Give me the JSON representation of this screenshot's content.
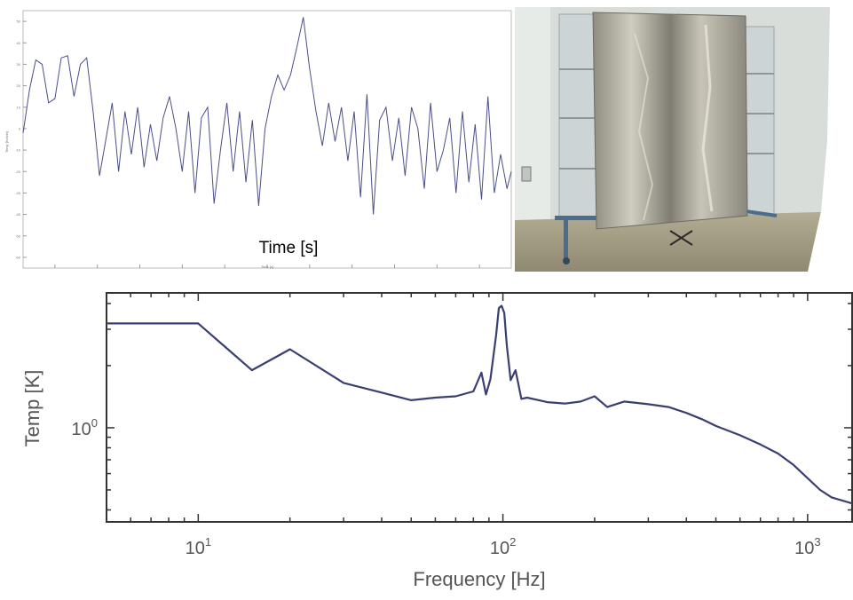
{
  "chart_data": [
    {
      "type": "line",
      "title": "",
      "xlabel": "Time [s]",
      "ylabel": "Temp [Kelvin]",
      "xlim": [
        3.985,
        4.215
      ],
      "ylim": [
        -65,
        55
      ],
      "x_ticks": [
        "4",
        "4.02",
        "4.04",
        "4.06",
        "4.08",
        "4.1",
        "4.12",
        "4.14",
        "4.16",
        "4.18",
        "4.2"
      ],
      "y_ticks": [
        "50",
        "40",
        "30",
        "20",
        "10",
        "0",
        "-10",
        "-20",
        "-30",
        "-40",
        "-50",
        "-60"
      ],
      "overlay_label": "Time [s]",
      "axis_label_small": "Time [s]",
      "series": [
        {
          "color": "#4a4f88",
          "x": [
            3.985,
            3.988,
            3.991,
            3.994,
            3.997,
            4.0,
            4.003,
            4.006,
            4.009,
            4.012,
            4.015,
            4.018,
            4.021,
            4.024,
            4.027,
            4.03,
            4.033,
            4.036,
            4.039,
            4.042,
            4.045,
            4.048,
            4.051,
            4.054,
            4.057,
            4.06,
            4.063,
            4.066,
            4.069,
            4.072,
            4.075,
            4.078,
            4.081,
            4.084,
            4.087,
            4.09,
            4.093,
            4.096,
            4.099,
            4.102,
            4.105,
            4.108,
            4.111,
            4.114,
            4.117,
            4.12,
            4.123,
            4.126,
            4.129,
            4.132,
            4.135,
            4.138,
            4.141,
            4.144,
            4.147,
            4.15,
            4.153,
            4.156,
            4.159,
            4.162,
            4.165,
            4.168,
            4.171,
            4.174,
            4.177,
            4.18,
            4.183,
            4.186,
            4.189,
            4.192,
            4.195,
            4.198,
            4.201,
            4.204,
            4.207,
            4.21,
            4.213,
            4.215
          ],
          "y": [
            -2,
            18,
            32,
            30,
            12,
            14,
            33,
            34,
            15,
            30,
            33,
            8,
            -22,
            -5,
            12,
            -20,
            8,
            -12,
            10,
            -18,
            2,
            -15,
            5,
            15,
            0,
            -20,
            8,
            -30,
            5,
            10,
            -35,
            -10,
            12,
            -20,
            8,
            -25,
            4,
            -36,
            0,
            15,
            25,
            18,
            25,
            38,
            52,
            28,
            8,
            -8,
            12,
            -6,
            10,
            -15,
            8,
            -32,
            16,
            -40,
            4,
            10,
            -15,
            5,
            -22,
            10,
            0,
            -28,
            12,
            -20,
            -10,
            5,
            -30,
            8,
            -25,
            2,
            -33,
            15,
            -30,
            -12,
            -28,
            -20
          ]
        }
      ]
    },
    {
      "type": "line",
      "title": "",
      "xlabel": "Frequency [Hz]",
      "ylabel": "Temp [K]",
      "xscale": "log",
      "yscale": "log",
      "xlim": [
        5,
        1400
      ],
      "ylim": [
        0.35,
        4.5
      ],
      "x_tick_labels": [
        {
          "base": "10",
          "exp": "1"
        },
        {
          "base": "10",
          "exp": "2"
        },
        {
          "base": "10",
          "exp": "3"
        }
      ],
      "y_tick_labels": [
        {
          "base": "10",
          "exp": "0"
        }
      ],
      "series": [
        {
          "color": "#3a3f72",
          "x": [
            5,
            10,
            15,
            20,
            30,
            40,
            50,
            60,
            70,
            80,
            85,
            88,
            91,
            95,
            97,
            99,
            101,
            103,
            106,
            110,
            115,
            120,
            140,
            160,
            180,
            200,
            220,
            250,
            300,
            350,
            400,
            450,
            500,
            600,
            700,
            800,
            900,
            1000,
            1100,
            1200,
            1400
          ],
          "y": [
            3.2,
            3.2,
            1.9,
            2.4,
            1.65,
            1.48,
            1.36,
            1.4,
            1.42,
            1.5,
            1.85,
            1.45,
            1.72,
            2.8,
            3.8,
            3.9,
            3.6,
            2.5,
            1.7,
            1.9,
            1.38,
            1.4,
            1.33,
            1.31,
            1.34,
            1.42,
            1.26,
            1.34,
            1.3,
            1.26,
            1.18,
            1.1,
            1.02,
            0.92,
            0.83,
            0.75,
            0.66,
            0.57,
            0.5,
            0.46,
            0.43
          ]
        }
      ]
    }
  ],
  "photo": {
    "alt_description": "",
    "colors": {
      "wall": "#d8dcd8",
      "floor": "#9b957d",
      "panel_frame": "#cfd6d8",
      "foil": "#a9a69c",
      "x_marker": "#2a2a2a"
    }
  }
}
